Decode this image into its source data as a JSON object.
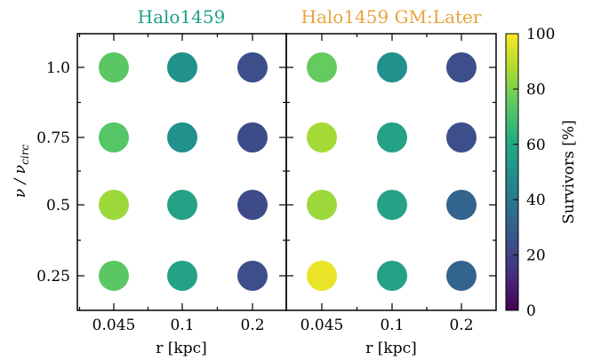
{
  "chart_data": [
    {
      "type": "scatter",
      "title": "Halo1459",
      "title_color": "#1fa187",
      "xlabel": "r [kpc]",
      "ylabel_main": "ν / ν",
      "ylabel_sub": "circ",
      "categories_x": [
        "0.045",
        "0.1",
        "0.2"
      ],
      "categories_y": [
        "0.25",
        "0.5",
        "0.75",
        "1.0"
      ],
      "points": [
        {
          "x": "0.045",
          "y": "1.0",
          "survivors": 74
        },
        {
          "x": "0.1",
          "y": "1.0",
          "survivors": 50
        },
        {
          "x": "0.2",
          "y": "1.0",
          "survivors": 24
        },
        {
          "x": "0.045",
          "y": "0.75",
          "survivors": 73
        },
        {
          "x": "0.1",
          "y": "0.75",
          "survivors": 50
        },
        {
          "x": "0.2",
          "y": "0.75",
          "survivors": 23
        },
        {
          "x": "0.045",
          "y": "0.5",
          "survivors": 85
        },
        {
          "x": "0.1",
          "y": "0.5",
          "survivors": 57
        },
        {
          "x": "0.2",
          "y": "0.5",
          "survivors": 23
        },
        {
          "x": "0.045",
          "y": "0.25",
          "survivors": 74
        },
        {
          "x": "0.1",
          "y": "0.25",
          "survivors": 57
        },
        {
          "x": "0.2",
          "y": "0.25",
          "survivors": 24
        }
      ]
    },
    {
      "type": "scatter",
      "title": "Halo1459 GM:Later",
      "title_color": "#e8a33c",
      "xlabel": "r [kpc]",
      "categories_x": [
        "0.045",
        "0.1",
        "0.2"
      ],
      "categories_y": [
        "0.25",
        "0.5",
        "0.75",
        "1.0"
      ],
      "points": [
        {
          "x": "0.045",
          "y": "1.0",
          "survivors": 76
        },
        {
          "x": "0.1",
          "y": "1.0",
          "survivors": 50
        },
        {
          "x": "0.2",
          "y": "1.0",
          "survivors": 24
        },
        {
          "x": "0.045",
          "y": "0.75",
          "survivors": 86
        },
        {
          "x": "0.1",
          "y": "0.75",
          "survivors": 57
        },
        {
          "x": "0.2",
          "y": "0.75",
          "survivors": 24
        },
        {
          "x": "0.045",
          "y": "0.5",
          "survivors": 85
        },
        {
          "x": "0.1",
          "y": "0.5",
          "survivors": 57
        },
        {
          "x": "0.2",
          "y": "0.5",
          "survivors": 32
        },
        {
          "x": "0.045",
          "y": "0.25",
          "survivors": 97
        },
        {
          "x": "0.1",
          "y": "0.25",
          "survivors": 57
        },
        {
          "x": "0.2",
          "y": "0.25",
          "survivors": 32
        }
      ]
    }
  ],
  "colorbar": {
    "label": "Survivors [%]",
    "range": [
      0,
      100
    ],
    "ticks": [
      "0",
      "20",
      "40",
      "60",
      "80",
      "100"
    ],
    "colormap": "viridis"
  }
}
